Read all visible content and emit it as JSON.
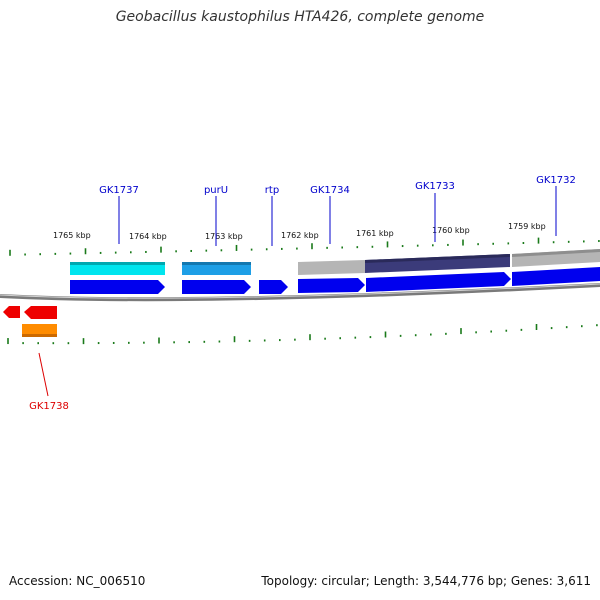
{
  "title": "Geobacillus kaustophilus HTA426, complete genome",
  "footer": {
    "accession": "Accession: NC_006510",
    "topology": "Topology: circular; Length: 3,544,776 bp; Genes: 3,611"
  },
  "colors": {
    "blue_genes": "#0000ee",
    "label_blue": "#0000cc",
    "label_red": "#dd0000",
    "red_genes": "#ee0000",
    "orange_feature": "#ff8c00",
    "cyan_feature": "#00e5ee",
    "sky_feature": "#1e9fe6",
    "gray_feature": "#b5b5b5",
    "navy_feature": "#3b3b7a",
    "tick_green": "#1a7a1a",
    "backbone_gray": "#888888"
  },
  "kbp_labels": [
    "1765 kbp",
    "1764 kbp",
    "1763 kbp",
    "1762 kbp",
    "1761 kbp",
    "1760 kbp",
    "1759 kbp"
  ],
  "forward_gene_labels": [
    "GK1737",
    "purU",
    "rtp",
    "GK1734",
    "GK1733",
    "GK1732"
  ],
  "reverse_gene_labels": [
    "GK1738"
  ]
}
